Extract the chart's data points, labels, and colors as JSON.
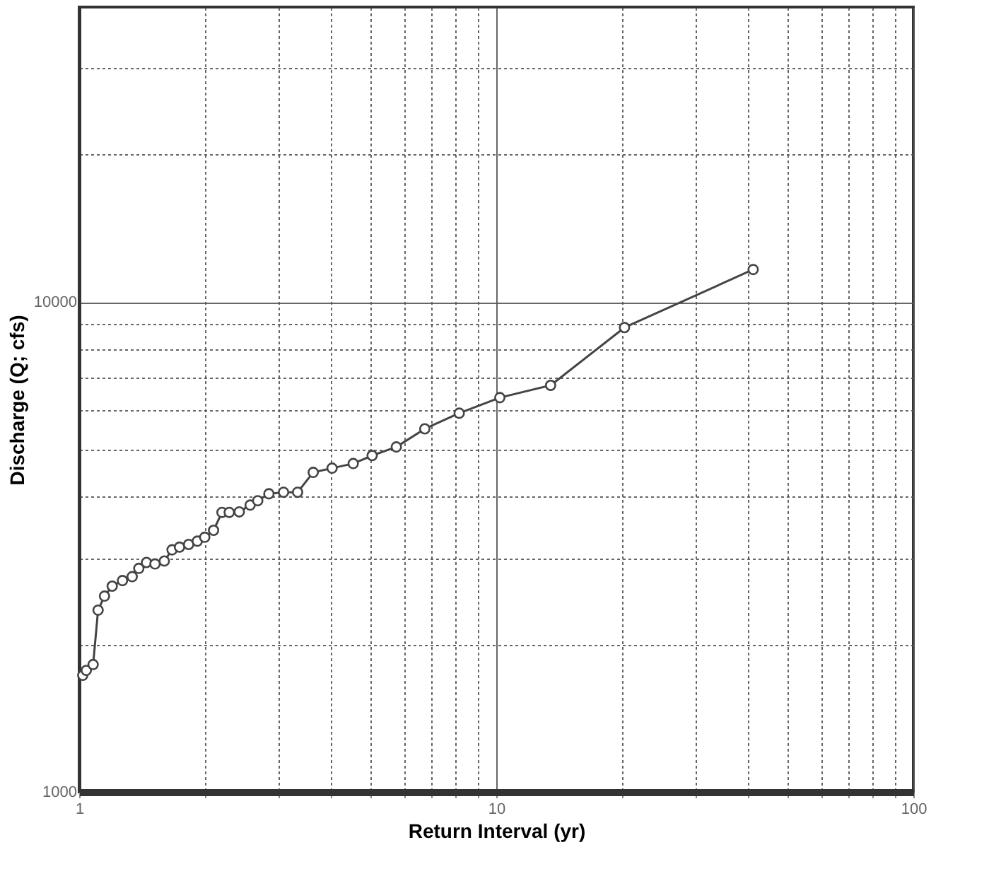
{
  "chart_data": {
    "type": "line",
    "xlabel": "Return Interval (yr)",
    "ylabel": "Discharge (Q; cfs)",
    "log": "xy",
    "grid": true,
    "marker": "circle",
    "line_style": "solid",
    "xlim": [
      1,
      100
    ],
    "ylim": [
      1000,
      40000
    ],
    "xticks": [
      1,
      {
        "value": 2,
        "label": null
      },
      {
        "value": 3,
        "label": null
      },
      {
        "value": 4,
        "label": null
      },
      {
        "value": 5,
        "label": null
      },
      {
        "value": 6,
        "label": null
      },
      {
        "value": 7,
        "label": null
      },
      {
        "value": 8,
        "label": null
      },
      {
        "value": 9,
        "label": null
      },
      10,
      {
        "value": 20,
        "label": null
      },
      {
        "value": 30,
        "label": null
      },
      {
        "value": 40,
        "label": null
      },
      {
        "value": 50,
        "label": null
      },
      {
        "value": 60,
        "label": null
      },
      {
        "value": 70,
        "label": null
      },
      {
        "value": 80,
        "label": null
      },
      {
        "value": 90,
        "label": null
      },
      100
    ],
    "yticks": [
      1000,
      {
        "value": 2000,
        "label": null
      },
      {
        "value": 3000,
        "label": null
      },
      {
        "value": 4000,
        "label": null
      },
      {
        "value": 5000,
        "label": null
      },
      {
        "value": 6000,
        "label": null
      },
      {
        "value": 7000,
        "label": null
      },
      {
        "value": 8000,
        "label": null
      },
      {
        "value": 9000,
        "label": null
      },
      10000,
      {
        "value": 20000,
        "label": null
      },
      {
        "value": 30000,
        "label": null
      }
    ],
    "series": [
      {
        "color": "#444444",
        "x": [
          1.02,
          1.04,
          1.08,
          1.11,
          1.15,
          1.2,
          1.27,
          1.34,
          1.39,
          1.45,
          1.52,
          1.6,
          1.67,
          1.74,
          1.83,
          1.92,
          2.0,
          2.1,
          2.2,
          2.29,
          2.42,
          2.57,
          2.68,
          2.85,
          3.09,
          3.34,
          3.64,
          4.04,
          4.54,
          5.04,
          5.76,
          6.74,
          8.15,
          10.2,
          13.5,
          20.3,
          41.3
        ],
        "values": [
          1730,
          1770,
          1820,
          2350,
          2510,
          2630,
          2700,
          2750,
          2860,
          2940,
          2920,
          2960,
          3120,
          3160,
          3200,
          3250,
          3310,
          3420,
          3720,
          3720,
          3730,
          3850,
          3930,
          4060,
          4090,
          4090,
          4490,
          4580,
          4680,
          4860,
          5060,
          5510,
          5930,
          6380,
          6760,
          8870,
          11650
        ]
      }
    ]
  }
}
